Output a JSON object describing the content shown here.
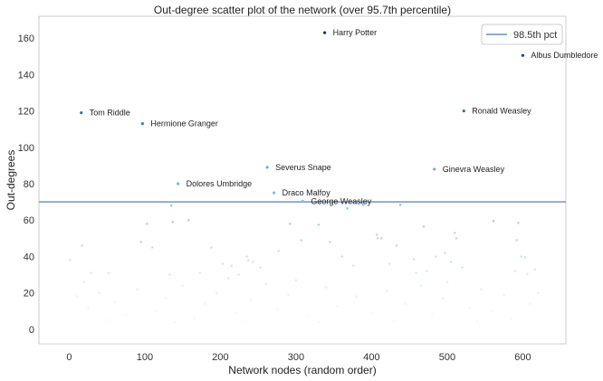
{
  "chart_data": {
    "type": "scatter",
    "title": "Out-degree scatter plot of the network (over 95.7th percentile)",
    "xlabel": "Network nodes (random order)",
    "ylabel": "Out-degrees",
    "xlim": [
      -40,
      657
    ],
    "ylim": [
      -8,
      172
    ],
    "xticks": [
      0,
      100,
      200,
      300,
      400,
      500,
      600
    ],
    "yticks": [
      0,
      20,
      40,
      60,
      80,
      100,
      120,
      140,
      160
    ],
    "grid": false,
    "colormap": "Blues",
    "threshold": {
      "name": "98.5th pct",
      "y": 70,
      "color": "#8eaad4"
    },
    "legend": {
      "placement": "top-right",
      "entries": [
        "98.5th pct"
      ]
    },
    "labeled_points": [
      {
        "name": "Harry Potter",
        "x": 338,
        "y": 163
      },
      {
        "name": "Albus Dumbledore",
        "x": 600,
        "y": 150.5
      },
      {
        "name": "Ronald Weasley",
        "x": 522,
        "y": 120
      },
      {
        "name": "Tom Riddle",
        "x": 16,
        "y": 119
      },
      {
        "name": "Hermione Granger",
        "x": 97,
        "y": 113
      },
      {
        "name": "Severus Snape",
        "x": 262,
        "y": 89
      },
      {
        "name": "Ginevra Weasley",
        "x": 483,
        "y": 88
      },
      {
        "name": "Dolores Umbridge",
        "x": 144,
        "y": 80
      },
      {
        "name": "Draco Malfoy",
        "x": 271,
        "y": 75
      },
      {
        "name": "George Weasley",
        "x": 309,
        "y": 70.4
      }
    ],
    "points": [
      [
        332,
        69.6
      ],
      [
        368,
        66.4
      ],
      [
        389,
        68.4
      ],
      [
        438,
        68.4
      ],
      [
        135,
        68
      ],
      [
        137,
        59
      ],
      [
        158,
        60
      ],
      [
        103,
        58
      ],
      [
        292,
        58
      ],
      [
        330,
        57.5
      ],
      [
        561,
        59.5
      ],
      [
        594,
        58.5
      ],
      [
        469,
        56.5
      ],
      [
        510,
        53
      ],
      [
        512,
        50
      ],
      [
        407,
        52
      ],
      [
        408,
        50
      ],
      [
        413,
        50
      ],
      [
        433,
        46
      ],
      [
        307,
        49
      ],
      [
        345,
        48
      ],
      [
        592,
        49
      ],
      [
        95,
        48
      ],
      [
        17,
        46
      ],
      [
        110,
        45
      ],
      [
        188,
        45
      ],
      [
        277,
        43
      ],
      [
        1,
        38
      ],
      [
        29,
        31
      ],
      [
        52,
        31
      ],
      [
        133,
        30
      ],
      [
        173,
        31
      ],
      [
        203,
        36
      ],
      [
        215,
        35
      ],
      [
        235,
        40
      ],
      [
        237,
        38
      ],
      [
        243,
        37
      ],
      [
        253,
        34
      ],
      [
        224,
        30
      ],
      [
        211,
        28
      ],
      [
        361,
        40
      ],
      [
        376,
        35
      ],
      [
        424,
        36
      ],
      [
        456,
        38.5
      ],
      [
        485,
        40
      ],
      [
        497,
        42
      ],
      [
        505,
        37
      ],
      [
        520,
        34
      ],
      [
        616,
        33
      ],
      [
        590,
        32
      ],
      [
        606,
        30.5
      ],
      [
        459,
        31
      ],
      [
        473,
        32
      ],
      [
        598,
        40
      ],
      [
        603,
        39.5
      ],
      [
        10,
        18
      ],
      [
        25,
        12
      ],
      [
        40,
        20
      ],
      [
        60,
        15
      ],
      [
        75,
        8
      ],
      [
        90,
        22
      ],
      [
        115,
        10
      ],
      [
        128,
        17
      ],
      [
        150,
        24
      ],
      [
        165,
        6
      ],
      [
        180,
        14
      ],
      [
        195,
        20
      ],
      [
        220,
        9
      ],
      [
        240,
        16
      ],
      [
        260,
        25
      ],
      [
        275,
        11
      ],
      [
        290,
        19
      ],
      [
        315,
        7
      ],
      [
        340,
        23
      ],
      [
        355,
        13
      ],
      [
        380,
        18
      ],
      [
        400,
        9
      ],
      [
        420,
        21
      ],
      [
        445,
        14
      ],
      [
        465,
        24
      ],
      [
        480,
        8
      ],
      [
        495,
        17
      ],
      [
        530,
        12
      ],
      [
        545,
        22
      ],
      [
        560,
        10
      ],
      [
        575,
        19
      ],
      [
        585,
        6
      ],
      [
        610,
        14
      ],
      [
        620,
        20
      ],
      [
        50,
        5
      ],
      [
        140,
        4
      ],
      [
        230,
        5
      ],
      [
        330,
        4
      ],
      [
        430,
        5
      ],
      [
        540,
        4
      ],
      [
        20,
        26
      ],
      [
        300,
        27
      ],
      [
        500,
        26
      ]
    ]
  }
}
